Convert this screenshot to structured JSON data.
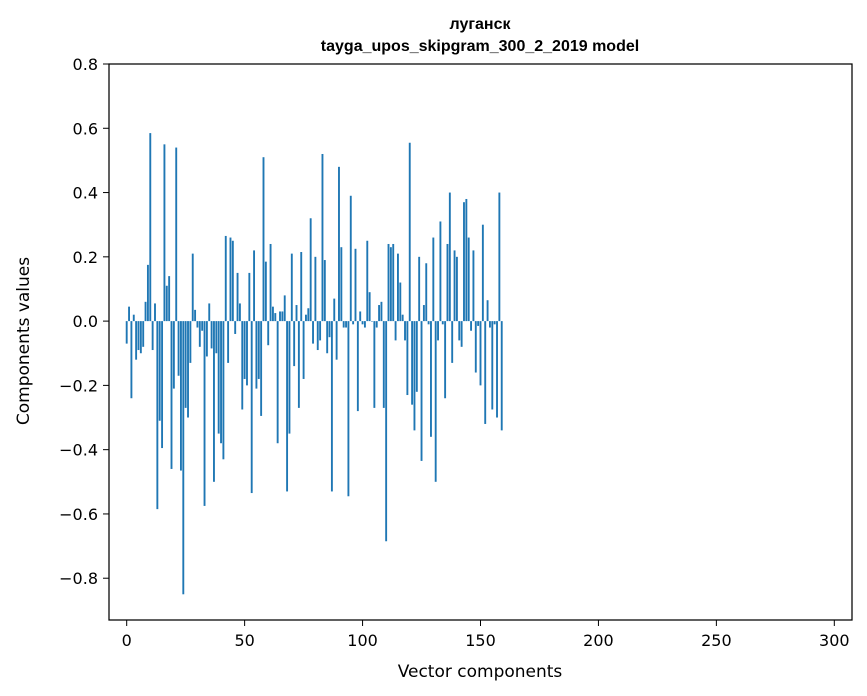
{
  "chart_data": {
    "type": "bar",
    "title_line1": "луганск",
    "title_line2": "tayga_upos_skipgram_300_2_2019 model",
    "xlabel": "Vector components",
    "ylabel": "Components values",
    "xlim": [
      -7.5,
      307.5
    ],
    "ylim": [
      -0.93,
      0.8
    ],
    "x_ticks": [
      0,
      50,
      100,
      150,
      200,
      250,
      300
    ],
    "x_tick_labels": [
      "0",
      "50",
      "100",
      "150",
      "200",
      "250",
      "300"
    ],
    "y_ticks": [
      -0.8,
      -0.6,
      -0.4,
      -0.2,
      0.0,
      0.2,
      0.4,
      0.6,
      0.8
    ],
    "y_tick_labels": [
      "−0.8",
      "−0.6",
      "−0.4",
      "−0.2",
      "0.0",
      "0.2",
      "0.4",
      "0.6",
      "0.8"
    ],
    "bar_color": "#1f77b4",
    "grid": false,
    "values": [
      -0.07,
      0.045,
      -0.24,
      0.02,
      -0.12,
      -0.09,
      -0.1,
      -0.08,
      0.06,
      0.175,
      0.585,
      -0.09,
      0.055,
      -0.585,
      -0.31,
      -0.395,
      0.55,
      0.11,
      0.14,
      -0.46,
      -0.21,
      0.54,
      -0.17,
      -0.465,
      -0.85,
      -0.27,
      -0.3,
      -0.13,
      0.21,
      0.035,
      -0.02,
      -0.08,
      -0.03,
      -0.575,
      -0.11,
      0.055,
      -0.085,
      -0.5,
      -0.1,
      -0.35,
      -0.38,
      -0.43,
      0.265,
      -0.13,
      0.26,
      0.25,
      -0.04,
      0.15,
      0.055,
      -0.275,
      -0.18,
      -0.2,
      0.15,
      -0.535,
      0.22,
      -0.21,
      -0.18,
      -0.295,
      0.51,
      0.185,
      -0.075,
      0.24,
      0.045,
      0.025,
      -0.38,
      0.03,
      0.03,
      0.08,
      -0.53,
      -0.35,
      0.21,
      -0.14,
      0.05,
      -0.27,
      0.215,
      -0.18,
      0.02,
      0.04,
      0.32,
      -0.07,
      0.2,
      -0.09,
      -0.06,
      0.52,
      0.19,
      -0.1,
      -0.05,
      -0.53,
      0.07,
      -0.12,
      0.48,
      0.23,
      -0.02,
      -0.02,
      -0.545,
      0.39,
      -0.01,
      0.225,
      -0.28,
      0.03,
      -0.01,
      -0.02,
      0.25,
      0.09,
      0.0,
      -0.27,
      -0.02,
      0.05,
      0.06,
      -0.27,
      -0.685,
      0.24,
      0.23,
      0.24,
      -0.06,
      0.21,
      0.12,
      0.02,
      -0.06,
      -0.23,
      0.555,
      -0.26,
      -0.34,
      -0.22,
      0.2,
      -0.435,
      0.05,
      0.18,
      -0.01,
      -0.36,
      0.26,
      -0.5,
      -0.06,
      0.31,
      -0.01,
      -0.24,
      0.24,
      0.4,
      -0.13,
      0.22,
      0.2,
      -0.06,
      -0.08,
      0.37,
      0.38,
      0.26,
      -0.03,
      0.22,
      -0.16,
      -0.015,
      -0.2,
      0.3,
      -0.32,
      0.065,
      -0.02,
      -0.275,
      -0.01,
      -0.3,
      0.4,
      -0.34
    ]
  }
}
